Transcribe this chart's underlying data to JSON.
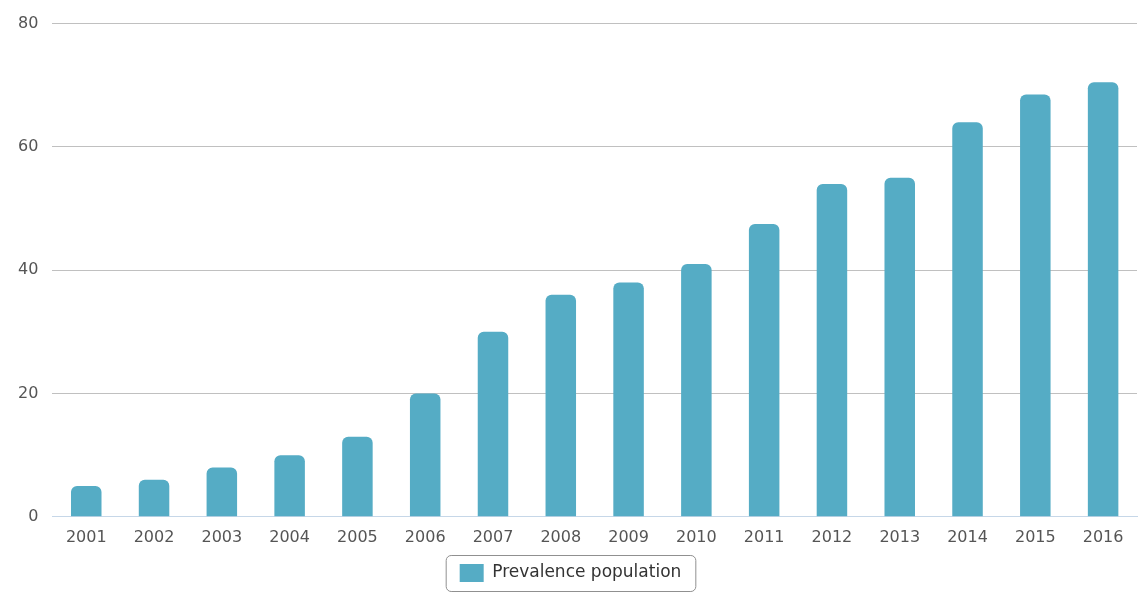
{
  "chart_data": {
    "type": "bar",
    "categories": [
      "2001",
      "2002",
      "2003",
      "2004",
      "2005",
      "2006",
      "2007",
      "2008",
      "2009",
      "2010",
      "2011",
      "2012",
      "2013",
      "2014",
      "2015",
      "2016"
    ],
    "series": [
      {
        "name": "Prevalence population",
        "color": "#55acc5",
        "values": [
          5,
          6,
          8,
          10,
          13,
          20,
          30,
          36,
          38,
          41,
          47.5,
          54,
          55,
          64,
          68.5,
          70.5
        ]
      }
    ],
    "ylim": [
      0,
      80
    ],
    "yticks": [
      0,
      20,
      40,
      60,
      80
    ],
    "grid": "y",
    "legend": "bottom"
  }
}
